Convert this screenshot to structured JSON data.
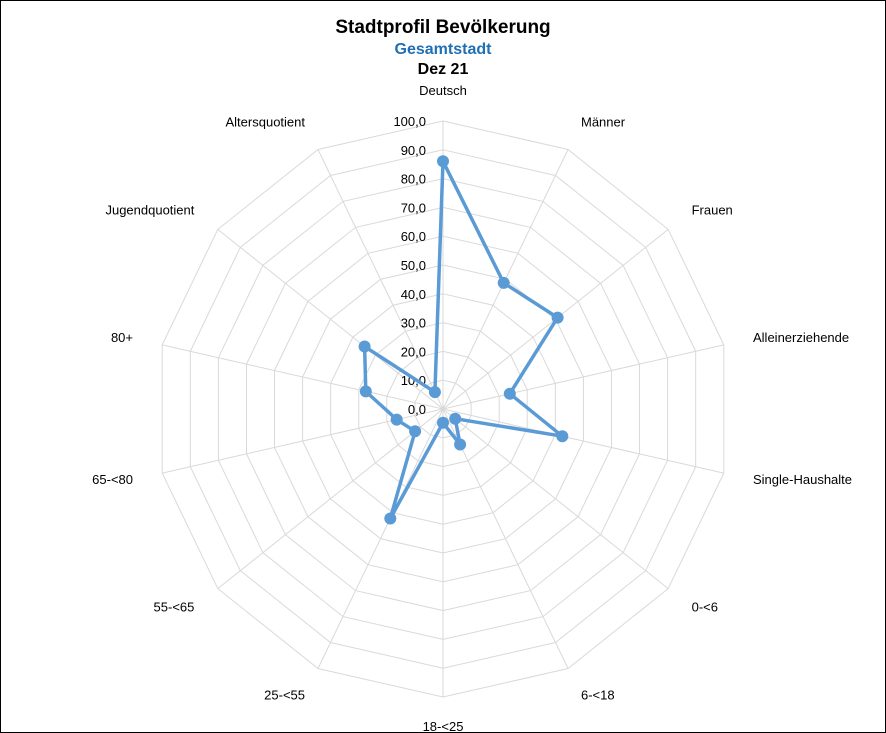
{
  "chart_data": {
    "type": "radar",
    "title": "Stadtprofil Bevölkerung",
    "subtitle": "Gesamtstadt",
    "period": "Dez 21",
    "categories": [
      "Deutsch",
      "Männer",
      "Frauen",
      "Alleinerziehende",
      "Single-Haushalte",
      "0-<6",
      "6-<18",
      "18-<25",
      "25-<55",
      "55-<65",
      "65-<80",
      "80+",
      "Jugendquotient",
      "Altersquotient"
    ],
    "series": [
      {
        "values": [
          86.0,
          48.6,
          50.9,
          23.8,
          42.5,
          5.4,
          13.7,
          4.8,
          42.2,
          12.4,
          16.5,
          27.5,
          34.8,
          6.5
        ]
      }
    ],
    "rlim": [
      0,
      100
    ],
    "ticks": [
      "0,0",
      "10,0",
      "20,0",
      "30,0",
      "40,0",
      "50,0",
      "60,0",
      "70,0",
      "80,0",
      "90,0",
      "100,0"
    ],
    "colors": {
      "series": "#5b9bd5",
      "grid": "#d9d9d9"
    }
  }
}
